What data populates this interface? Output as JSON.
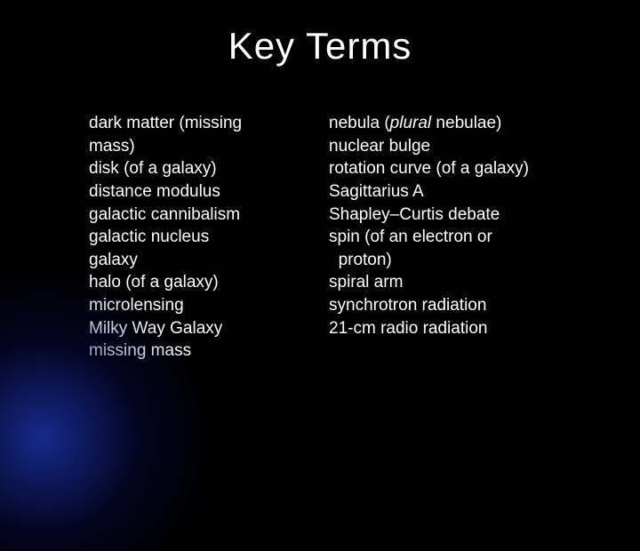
{
  "title": "Key Terms",
  "columns": {
    "left": [
      "dark matter (missing\nmass)",
      "disk (of a galaxy)",
      "distance modulus",
      "galactic cannibalism",
      "galactic nucleus",
      "galaxy",
      "halo (of a galaxy)",
      "microlensing",
      "Milky Way Galaxy",
      "missing mass"
    ],
    "right_prefix": "nebula (",
    "right_italic": "plural",
    "right_suffix": " nebulae)",
    "right_rest": [
      "nuclear bulge",
      "rotation curve (of a galaxy)",
      "Sagittarius A",
      "Shapley–Curtis debate",
      "spin (of an electron or\n  proton)",
      "spiral arm",
      "synchrotron radiation",
      "21-cm radio radiation"
    ]
  },
  "colors": {
    "background": "#000000",
    "text": "#ffffff",
    "glow": "#1e3cc8"
  },
  "typography": {
    "title_fontsize": 42,
    "body_fontsize": 19,
    "font_family": "Arial"
  }
}
